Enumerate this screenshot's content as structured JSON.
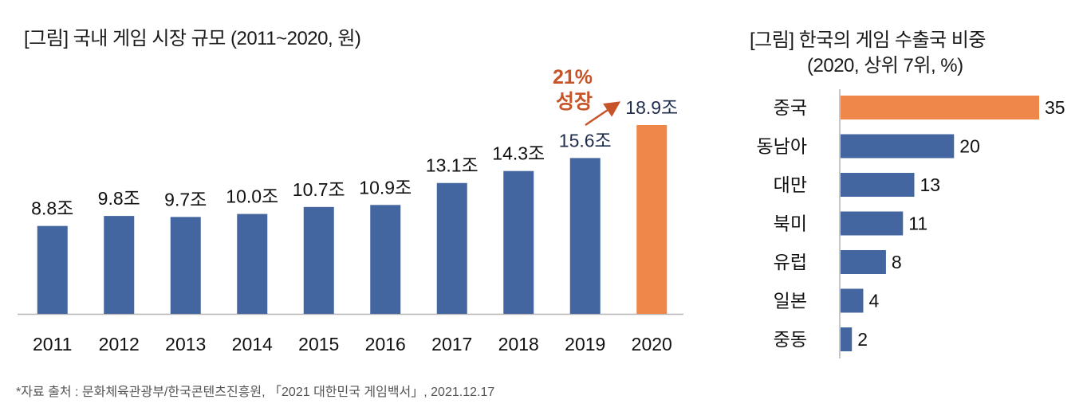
{
  "titles": {
    "left": "[그림] 국내 게임 시장 규모 (2011~2020, 원)",
    "right_line1": "[그림] 한국의 게임 수출국 비중",
    "right_line2": "(2020, 상위 7위, %)"
  },
  "source": "*자료 출처 : 문화체육관광부/한국콘텐츠진흥원, 「2021 대한민국 게임백서」, 2021.12.17",
  "colors": {
    "primary": "#4466a0",
    "highlight": "#f0874a",
    "annotation": "#c65428",
    "axis": "#b3b3b3"
  },
  "chart_data": [
    {
      "type": "bar",
      "orientation": "vertical",
      "title": "[그림] 국내 게임 시장 규모 (2011~2020, 원)",
      "xlabel": "",
      "ylabel": "",
      "unit": "조 원",
      "categories": [
        "2011",
        "2012",
        "2013",
        "2014",
        "2015",
        "2016",
        "2017",
        "2018",
        "2019",
        "2020"
      ],
      "values": [
        8.8,
        9.8,
        9.7,
        10.0,
        10.7,
        10.9,
        13.1,
        14.3,
        15.6,
        18.9
      ],
      "data_labels": [
        "8.8조",
        "9.8조",
        "9.7조",
        "10.0조",
        "10.7조",
        "10.9조",
        "13.1조",
        "14.3조",
        "15.6조",
        "18.9조"
      ],
      "highlight_index": 9,
      "ylim": [
        0,
        19.2
      ],
      "grid": false,
      "annotation": {
        "line1": "21%",
        "line2": "성장",
        "arrow_from": "2019",
        "arrow_to": "2020"
      }
    },
    {
      "type": "bar",
      "orientation": "horizontal",
      "title": "[그림] 한국의 게임 수출국 비중 (2020, 상위 7위, %)",
      "unit": "%",
      "categories": [
        "중국",
        "동남아",
        "대만",
        "북미",
        "유럽",
        "일본",
        "중동"
      ],
      "values": [
        35,
        20,
        13,
        11,
        8,
        4,
        2
      ],
      "highlight_index": 0,
      "xlim": [
        0,
        37
      ],
      "grid": false
    }
  ]
}
